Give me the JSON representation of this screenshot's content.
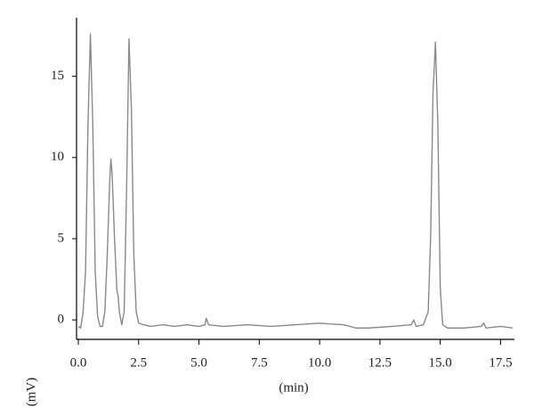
{
  "chart_data": {
    "type": "line",
    "x_label": "(min)",
    "y_label": "(mV)",
    "x": [
      0.0,
      0.1,
      0.2,
      0.3,
      0.4,
      0.5,
      0.6,
      0.7,
      0.8,
      0.9,
      1.0,
      1.1,
      1.2,
      1.3,
      1.35,
      1.4,
      1.5,
      1.6,
      1.65,
      1.7,
      1.8,
      1.9,
      2.0,
      2.1,
      2.2,
      2.3,
      2.4,
      2.5,
      2.7,
      3.0,
      3.5,
      4.0,
      4.5,
      5.0,
      5.25,
      5.3,
      5.4,
      6.0,
      7.0,
      8.0,
      9.0,
      10.0,
      11.0,
      11.5,
      12.0,
      13.0,
      13.8,
      13.9,
      14.0,
      14.3,
      14.5,
      14.6,
      14.7,
      14.8,
      14.9,
      15.0,
      15.1,
      15.3,
      16.0,
      16.7,
      16.8,
      16.9,
      17.5,
      18.0
    ],
    "series": [
      {
        "color": "#8a8a8a",
        "values": [
          -0.4,
          -0.5,
          0.5,
          3,
          12,
          17.6,
          12,
          3,
          0.2,
          -0.4,
          -0.4,
          0.5,
          4,
          8.5,
          9.9,
          9,
          5,
          1.8,
          1.5,
          0.5,
          -0.3,
          0.5,
          8,
          17.3,
          13,
          4,
          0.5,
          -0.2,
          -0.3,
          -0.4,
          -0.3,
          -0.4,
          -0.3,
          -0.4,
          -0.3,
          0.1,
          -0.3,
          -0.4,
          -0.3,
          -0.4,
          -0.3,
          -0.2,
          -0.3,
          -0.5,
          -0.5,
          -0.4,
          -0.3,
          0.0,
          -0.4,
          -0.3,
          0.5,
          5,
          14,
          17.1,
          12,
          2,
          -0.3,
          -0.5,
          -0.5,
          -0.4,
          -0.2,
          -0.5,
          -0.4,
          -0.5
        ]
      }
    ],
    "xlim": [
      0,
      18
    ],
    "ylim": [
      -1.2,
      18.6
    ],
    "xticks": [
      {
        "value": 0,
        "label": "0.0"
      },
      {
        "value": 2.5,
        "label": "2.5"
      },
      {
        "value": 5,
        "label": "5.0"
      },
      {
        "value": 7.5,
        "label": "7.5"
      },
      {
        "value": 10,
        "label": "10.0"
      },
      {
        "value": 12.5,
        "label": "12.5"
      },
      {
        "value": 15,
        "label": "15.0"
      },
      {
        "value": 17.5,
        "label": "17.5"
      }
    ],
    "yticks": [
      0,
      5,
      10,
      15
    ]
  }
}
